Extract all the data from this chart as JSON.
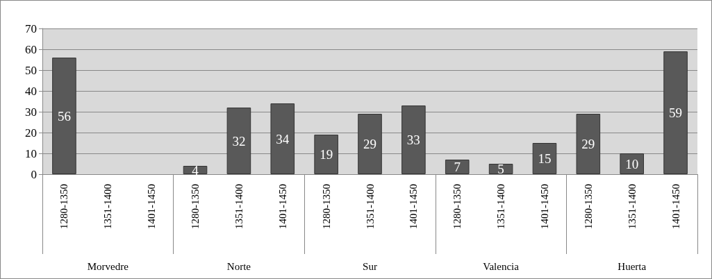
{
  "chart_data": {
    "type": "bar",
    "categories": [
      "1280-1350",
      "1351-1400",
      "1401-1450",
      "1280-1350",
      "1351-1400",
      "1401-1450",
      "1280-1350",
      "1351-1400",
      "1401-1450",
      "1280-1350",
      "1351-1400",
      "1401-1450",
      "1280-1350",
      "1351-1400",
      "1401-1450"
    ],
    "values": [
      56,
      null,
      null,
      4,
      32,
      34,
      19,
      29,
      33,
      7,
      5,
      15,
      29,
      10,
      59
    ],
    "color": "#595959",
    "ylim": [
      0,
      70
    ],
    "yticks": [
      0,
      10,
      20,
      30,
      40,
      50,
      60,
      70
    ],
    "grid": "y",
    "data_labels": true,
    "annotations": [
      "Morvedre",
      "Norte",
      "Sur",
      "Valencia",
      "Huerta"
    ]
  }
}
